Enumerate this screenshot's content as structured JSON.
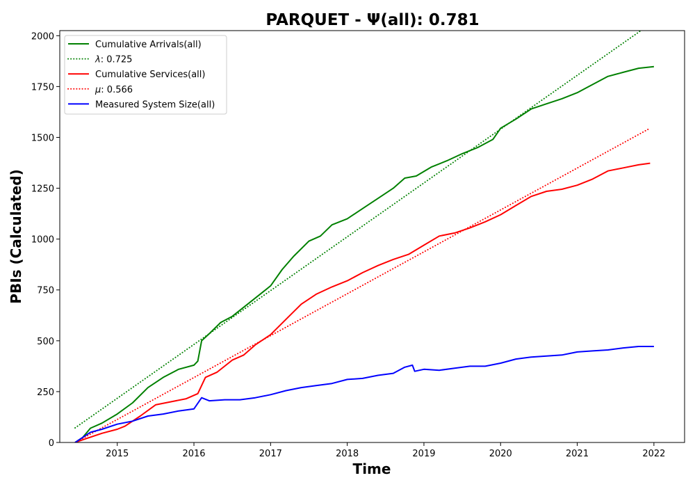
{
  "chart_data": {
    "type": "line",
    "title": "PARQUET -  Ψ(all): 0.781",
    "xlabel": "Time",
    "ylabel": "PBIs (Calculated)",
    "xlim": [
      2014.25,
      2022.4
    ],
    "ylim": [
      0,
      2025
    ],
    "x_ticks": [
      2015,
      2016,
      2017,
      2018,
      2019,
      2020,
      2021,
      2022
    ],
    "x_tick_labels": [
      "2015",
      "2016",
      "2017",
      "2018",
      "2019",
      "2020",
      "2021",
      "2022"
    ],
    "y_ticks": [
      0,
      250,
      500,
      750,
      1000,
      1250,
      1500,
      1750,
      2000
    ],
    "y_tick_labels": [
      "0",
      "250",
      "500",
      "750",
      "1000",
      "1250",
      "1500",
      "1750",
      "2000"
    ],
    "grid": false,
    "legend_position": "top-left",
    "series": [
      {
        "name": "Cumulative Arrivals(all)",
        "color": "#008000",
        "style": "solid",
        "x": [
          2014.45,
          2014.55,
          2014.65,
          2014.8,
          2015.0,
          2015.2,
          2015.4,
          2015.6,
          2015.8,
          2016.0,
          2016.05,
          2016.1,
          2016.2,
          2016.35,
          2016.5,
          2016.7,
          2016.9,
          2017.0,
          2017.15,
          2017.3,
          2017.5,
          2017.65,
          2017.8,
          2018.0,
          2018.2,
          2018.4,
          2018.6,
          2018.75,
          2018.9,
          2019.1,
          2019.3,
          2019.5,
          2019.7,
          2019.9,
          2020.0,
          2020.2,
          2020.4,
          2020.6,
          2020.8,
          2021.0,
          2021.2,
          2021.4,
          2021.6,
          2021.8,
          2022.0
        ],
        "y": [
          0,
          25,
          70,
          95,
          140,
          195,
          270,
          320,
          360,
          380,
          400,
          500,
          535,
          590,
          620,
          680,
          740,
          770,
          850,
          915,
          990,
          1015,
          1070,
          1100,
          1150,
          1200,
          1250,
          1300,
          1310,
          1355,
          1385,
          1420,
          1450,
          1490,
          1545,
          1590,
          1640,
          1665,
          1690,
          1720,
          1760,
          1800,
          1820,
          1840,
          1848
        ]
      },
      {
        "name": "λ: 0.725",
        "color": "#008000",
        "style": "dotted",
        "x": [
          2014.45,
          2021.85
        ],
        "y": [
          72,
          2030
        ]
      },
      {
        "name": "Cumulative Services(all)",
        "color": "#ff0000",
        "style": "solid",
        "x": [
          2014.45,
          2014.6,
          2014.8,
          2015.0,
          2015.1,
          2015.3,
          2015.5,
          2015.7,
          2015.9,
          2016.05,
          2016.15,
          2016.3,
          2016.5,
          2016.65,
          2016.8,
          2017.0,
          2017.2,
          2017.4,
          2017.6,
          2017.8,
          2018.0,
          2018.2,
          2018.4,
          2018.6,
          2018.8,
          2019.0,
          2019.2,
          2019.4,
          2019.6,
          2019.8,
          2020.0,
          2020.2,
          2020.4,
          2020.6,
          2020.8,
          2021.0,
          2021.2,
          2021.4,
          2021.6,
          2021.8,
          2021.95
        ],
        "y": [
          0,
          20,
          45,
          65,
          80,
          130,
          185,
          200,
          215,
          240,
          320,
          345,
          405,
          430,
          480,
          530,
          605,
          680,
          730,
          765,
          795,
          835,
          870,
          900,
          925,
          970,
          1015,
          1030,
          1055,
          1085,
          1120,
          1165,
          1210,
          1235,
          1245,
          1265,
          1295,
          1335,
          1350,
          1365,
          1373
        ]
      },
      {
        "name": "μ: 0.566",
        "color": "#ff0000",
        "style": "dotted",
        "x": [
          2014.45,
          2021.95
        ],
        "y": [
          0,
          1545
        ]
      },
      {
        "name": "Measured System Size(all)",
        "color": "#0000ff",
        "style": "solid",
        "x": [
          2014.45,
          2014.55,
          2014.65,
          2014.8,
          2015.0,
          2015.2,
          2015.4,
          2015.6,
          2015.8,
          2016.0,
          2016.1,
          2016.2,
          2016.4,
          2016.6,
          2016.8,
          2017.0,
          2017.2,
          2017.4,
          2017.6,
          2017.8,
          2018.0,
          2018.2,
          2018.4,
          2018.6,
          2018.75,
          2018.85,
          2018.88,
          2019.0,
          2019.2,
          2019.4,
          2019.6,
          2019.8,
          2020.0,
          2020.2,
          2020.4,
          2020.6,
          2020.8,
          2021.0,
          2021.2,
          2021.4,
          2021.6,
          2021.8,
          2022.0
        ],
        "y": [
          0,
          25,
          50,
          65,
          90,
          105,
          130,
          140,
          155,
          165,
          220,
          205,
          210,
          210,
          220,
          235,
          255,
          270,
          280,
          290,
          310,
          315,
          330,
          340,
          370,
          380,
          350,
          360,
          355,
          365,
          375,
          375,
          390,
          410,
          420,
          425,
          430,
          445,
          450,
          455,
          465,
          472,
          472
        ]
      }
    ]
  }
}
